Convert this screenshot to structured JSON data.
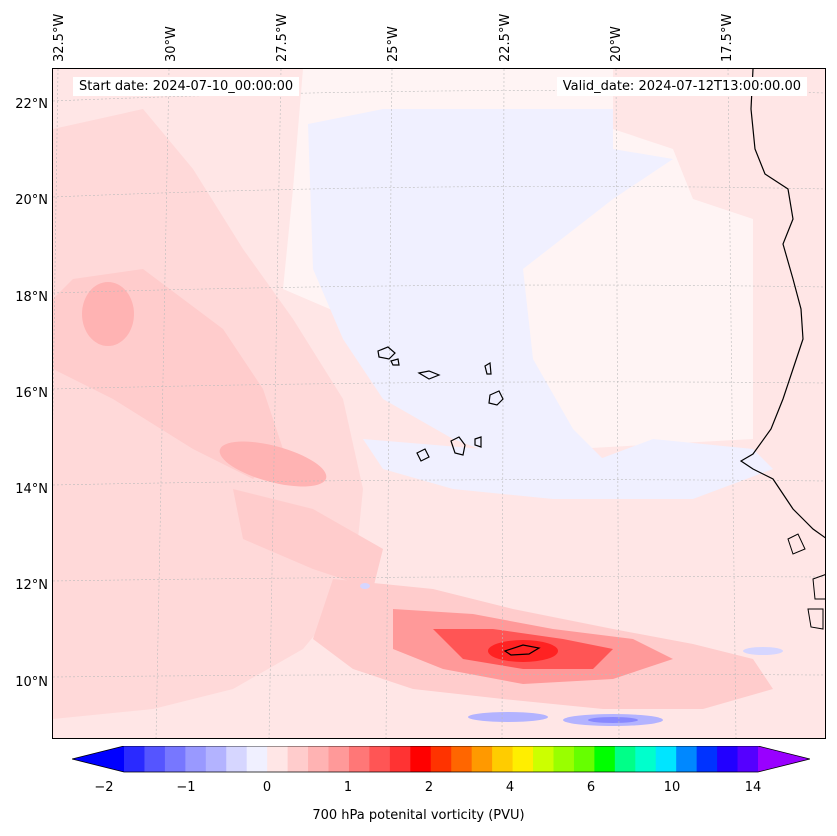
{
  "map": {
    "start_date": "Start date: 2024-07-10_00:00:00",
    "valid_date": "Valid_date: 2024-07-12T13:00:00.00",
    "lon_labels": [
      "32.5°W",
      "30°W",
      "27.5°W",
      "25°W",
      "22.5°W",
      "20°W",
      "17.5°W"
    ],
    "lat_labels": [
      "22°N",
      "20°N",
      "18°N",
      "16°N",
      "14°N",
      "12°N",
      "10°N"
    ],
    "colors": {
      "ocean_bg": "#fff0f0",
      "coast": "#000000",
      "grid": "#cccccc"
    }
  },
  "colorbar": {
    "label": "700 hPa potenital vorticity (PVU)",
    "ticks": [
      "−2",
      "−1",
      "0",
      "1",
      "2",
      "4",
      "6",
      "10",
      "14"
    ],
    "colors": [
      "#0000ff",
      "#2a2aff",
      "#5555ff",
      "#7777ff",
      "#9999ff",
      "#b3b3ff",
      "#d6d6ff",
      "#f0f0ff",
      "#ffe6e6",
      "#ffcccc",
      "#ffb3b3",
      "#ff9999",
      "#ff7777",
      "#ff5555",
      "#ff3333",
      "#ff0000",
      "#ff3300",
      "#ff6600",
      "#ff9900",
      "#ffcc00",
      "#ffee00",
      "#ccff00",
      "#99ff00",
      "#66ff00",
      "#00ff00",
      "#00ff88",
      "#00ffcc",
      "#00e5ff",
      "#0088ff",
      "#0033ff",
      "#2200ff",
      "#5500ff",
      "#9900ff"
    ]
  }
}
